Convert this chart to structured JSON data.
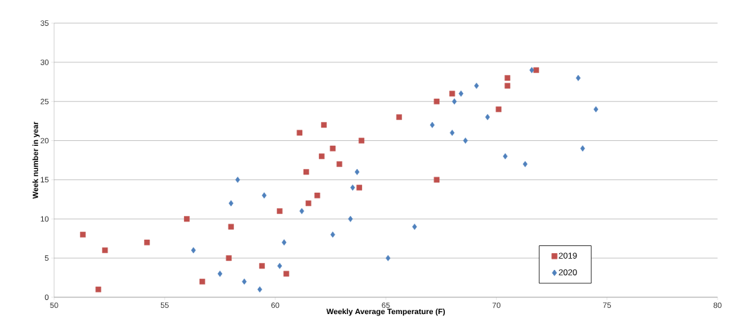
{
  "chart_data": {
    "type": "scatter",
    "xlabel": "Weekly Average Temperature (F)",
    "ylabel": "Week number in  year",
    "xlim": [
      50,
      80
    ],
    "xticks": [
      50,
      55,
      60,
      65,
      70,
      75,
      80
    ],
    "ylim": [
      0,
      35
    ],
    "yticks": [
      0,
      5,
      10,
      15,
      20,
      25,
      30,
      35
    ],
    "grid": "y",
    "legend": "bottom right",
    "series": [
      {
        "name": "2019",
        "color": "#c0504d",
        "marker": "square",
        "x": [
          52.0,
          56.7,
          60.5,
          59.4,
          57.9,
          52.3,
          54.2,
          51.3,
          58.0,
          56.0,
          60.2,
          61.5,
          61.9,
          63.8,
          67.3,
          61.4,
          62.9,
          62.1,
          62.6,
          63.9,
          61.1,
          62.2,
          65.6,
          70.1,
          67.3,
          68.0,
          70.5,
          70.5,
          71.8
        ],
        "values": [
          1,
          2,
          3,
          4,
          5,
          6,
          7,
          8,
          9,
          10,
          11,
          12,
          13,
          14,
          15,
          16,
          17,
          18,
          19,
          20,
          21,
          22,
          23,
          24,
          25,
          26,
          27,
          28,
          29
        ]
      },
      {
        "name": "2020",
        "color": "#4f81bd",
        "marker": "diamond",
        "x": [
          59.3,
          58.6,
          57.5,
          60.2,
          65.1,
          56.3,
          60.4,
          62.6,
          66.3,
          63.4,
          61.2,
          58.0,
          59.5,
          63.5,
          58.3,
          63.7,
          71.3,
          70.4,
          73.9,
          68.6,
          68.0,
          67.1,
          69.6,
          74.5,
          68.1,
          68.4,
          69.1,
          73.7,
          71.6
        ],
        "values": [
          1,
          2,
          3,
          4,
          5,
          6,
          7,
          8,
          9,
          10,
          11,
          12,
          13,
          14,
          15,
          16,
          17,
          18,
          19,
          20,
          21,
          22,
          23,
          24,
          25,
          26,
          27,
          28,
          29
        ]
      }
    ]
  }
}
